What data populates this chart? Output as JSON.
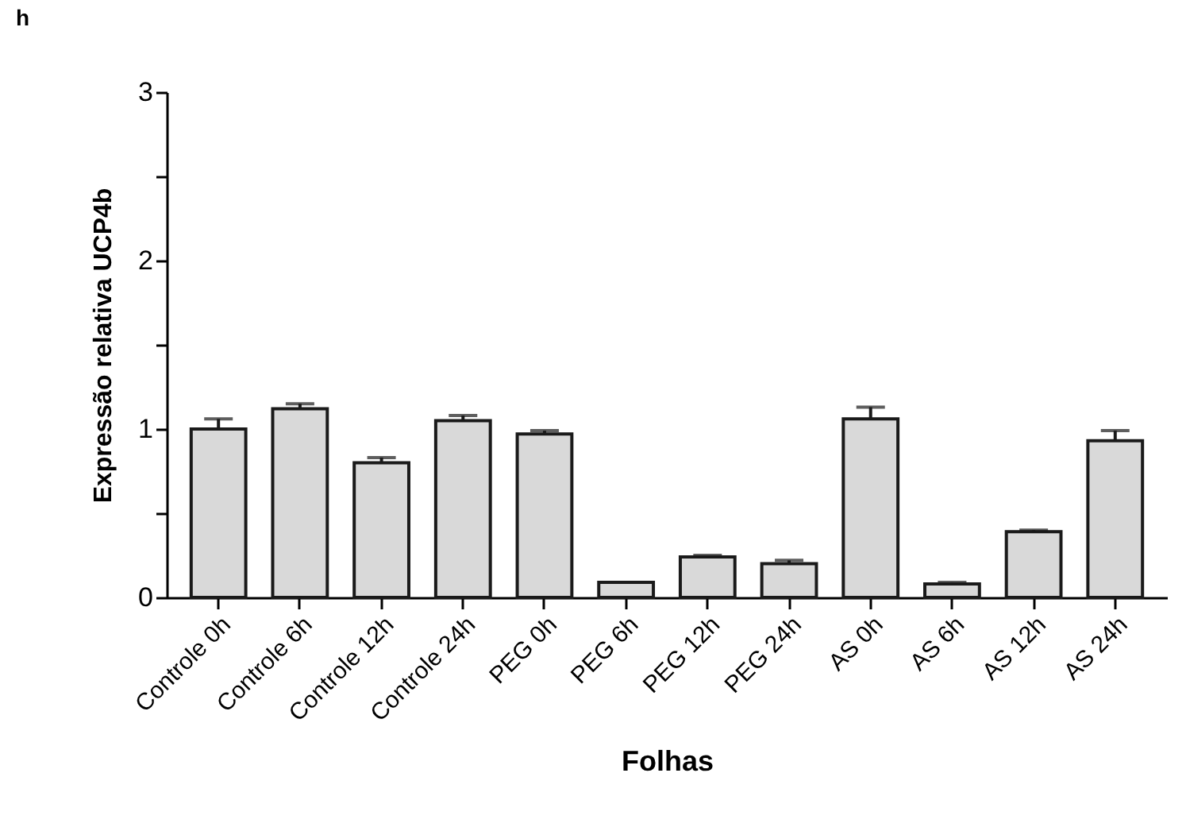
{
  "chart_data": {
    "type": "bar",
    "title": "h",
    "xlabel": "Folhas",
    "ylabel": "Expressão relativa UCP4b",
    "categories": [
      "Controle 0h",
      "Controle 6h",
      "Controle 12h",
      "Controle 24h",
      "PEG 0h",
      "PEG 6h",
      "PEG 12h",
      "PEG 24h",
      "AS 0h",
      "AS 6h",
      "AS 12h",
      "AS 24h"
    ],
    "values": [
      1.0,
      1.12,
      0.8,
      1.05,
      0.97,
      0.09,
      0.24,
      0.2,
      1.06,
      0.08,
      0.39,
      0.93
    ],
    "errors": [
      0.06,
      0.03,
      0.03,
      0.03,
      0.02,
      null,
      0.01,
      0.02,
      0.07,
      0.01,
      0.01,
      0.06
    ],
    "color": "#d9d9d9",
    "ylim": [
      0,
      3
    ],
    "yticks": [
      0,
      {
        "value": 0.5,
        "label": null
      },
      1,
      {
        "value": 1.5,
        "label": null
      },
      2,
      {
        "value": 2.5,
        "label": null
      },
      3
    ],
    "grid": false
  }
}
